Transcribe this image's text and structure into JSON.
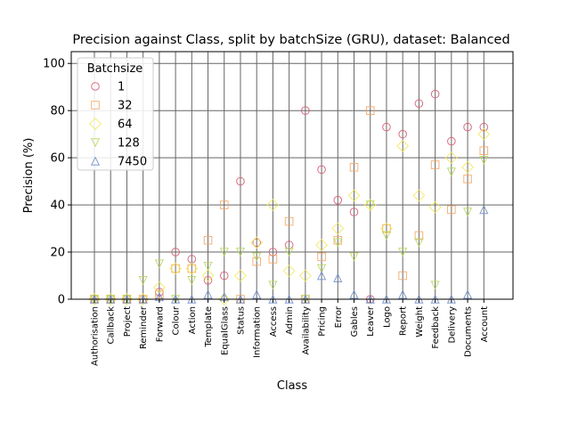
{
  "chart_data": {
    "type": "scatter",
    "title": "Precision against Class, split by batchSize (GRU), dataset: Balanced",
    "xlabel": "Class",
    "ylabel": "Precision (%)",
    "ylim": [
      0,
      105
    ],
    "yticks": [
      0,
      20,
      40,
      60,
      80,
      100
    ],
    "grid": true,
    "legend_title": "Batchsize",
    "legend_position": "top-left",
    "categories": [
      "Authorisation",
      "Callback",
      "Project",
      "Reminder",
      "Forward",
      "Colour",
      "Action",
      "Template",
      "EqualGlass",
      "Status",
      "Information",
      "Access",
      "Admin",
      "Availability",
      "Pricing",
      "Error",
      "Gables",
      "Leaver",
      "Logo",
      "Report",
      "Weight",
      "Feedback",
      "Delivery",
      "Documents",
      "Account"
    ],
    "series": [
      {
        "name": "1",
        "color": "#d6546e",
        "marker": "circle",
        "values": [
          0,
          0,
          0,
          0,
          3,
          20,
          17,
          8,
          10,
          50,
          24,
          20,
          23,
          80,
          55,
          42,
          37,
          0,
          73,
          70,
          83,
          87,
          67,
          73,
          73
        ]
      },
      {
        "name": "32",
        "color": "#f4a460",
        "marker": "square",
        "values": [
          0,
          0,
          0,
          0,
          2,
          13,
          13,
          25,
          40,
          0,
          16,
          17,
          33,
          0,
          18,
          25,
          56,
          80,
          30,
          10,
          27,
          57,
          38,
          51,
          63
        ]
      },
      {
        "name": "64",
        "color": "#f2e85a",
        "marker": "diamond",
        "values": [
          0,
          0,
          0,
          0,
          5,
          13,
          13,
          10,
          0,
          10,
          24,
          40,
          12,
          10,
          23,
          30,
          44,
          40,
          30,
          65,
          44,
          39,
          60,
          56,
          70
        ]
      },
      {
        "name": "128",
        "color": "#b5d65a",
        "marker": "triangle-down",
        "values": [
          0,
          0,
          0,
          8,
          15,
          0,
          8,
          14,
          20,
          20,
          18,
          6,
          20,
          0,
          13,
          24,
          18,
          40,
          27,
          20,
          24,
          6,
          54,
          37,
          59
        ]
      },
      {
        "name": "7450",
        "color": "#6c8ac8",
        "marker": "triangle-up",
        "values": [
          0,
          0,
          0,
          0,
          1,
          0,
          0,
          2,
          1,
          0,
          2,
          0,
          0,
          0,
          10,
          9,
          2,
          0,
          0,
          2,
          0,
          0,
          0,
          2,
          38
        ]
      }
    ]
  }
}
